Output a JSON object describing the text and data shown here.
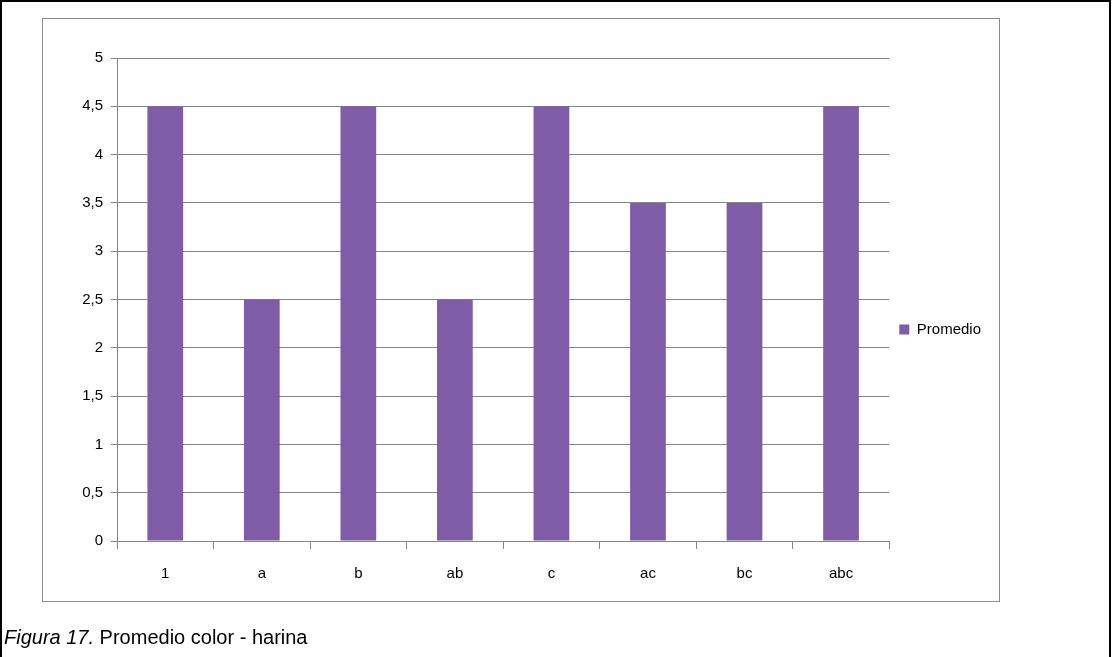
{
  "chart_data": {
    "type": "bar",
    "categories": [
      "1",
      "a",
      "b",
      "ab",
      "c",
      "ac",
      "bc",
      "abc"
    ],
    "series": [
      {
        "name": "Promedio",
        "color": "#7e5ca8",
        "values": [
          4.5,
          2.5,
          4.5,
          2.5,
          4.5,
          3.5,
          3.5,
          4.5
        ]
      }
    ],
    "ylim": [
      0,
      5
    ],
    "yticks": [
      0,
      {
        "value": 0.5,
        "label": "0,5"
      },
      1,
      {
        "value": 1.5,
        "label": "1,5"
      },
      2,
      {
        "value": 2.5,
        "label": "2,5"
      },
      3,
      {
        "value": 3.5,
        "label": "3,5"
      },
      4,
      {
        "value": 4.5,
        "label": "4,5"
      },
      5
    ],
    "grid": "y",
    "legend": "right",
    "annotations": [
      "Figura 17. Promedio color - harina"
    ]
  }
}
